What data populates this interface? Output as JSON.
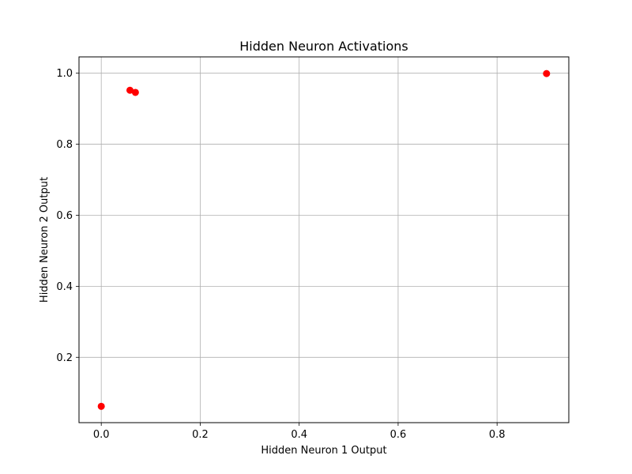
{
  "chart_data": {
    "type": "scatter",
    "title": "Hidden Neuron Activations",
    "xlabel": "Hidden Neuron 1 Output",
    "ylabel": "Hidden Neuron 2 Output",
    "xlim": [
      -0.045,
      0.945
    ],
    "ylim": [
      0.016,
      1.046
    ],
    "xticks": [
      0.0,
      0.2,
      0.4,
      0.6,
      0.8
    ],
    "xtick_labels": [
      "0.0",
      "0.2",
      "0.4",
      "0.6",
      "0.8"
    ],
    "yticks": [
      0.2,
      0.4,
      0.6,
      0.8,
      1.0
    ],
    "ytick_labels": [
      "0.2",
      "0.4",
      "0.6",
      "0.8",
      "1.0"
    ],
    "grid": true,
    "marker_color": "#ff0000",
    "points": [
      {
        "x": 0.0,
        "y": 0.062
      },
      {
        "x": 0.058,
        "y": 0.952
      },
      {
        "x": 0.069,
        "y": 0.946
      },
      {
        "x": 0.9,
        "y": 0.999
      }
    ]
  }
}
